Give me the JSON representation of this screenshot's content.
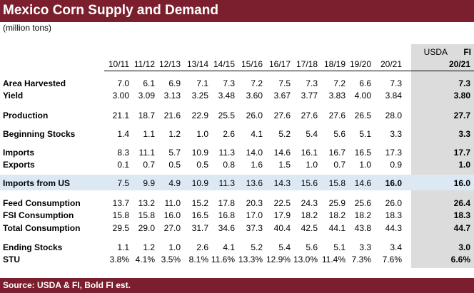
{
  "title": "Mexico Corn Supply and Demand",
  "subtitle": "(million tons)",
  "header_top": {
    "usda": "USDA",
    "fi": "FI"
  },
  "columns": [
    "10/11",
    "11/12",
    "12/13",
    "13/14",
    "14/15",
    "15/16",
    "16/17",
    "17/18",
    "18/19",
    "19/20",
    "20/21",
    "20/21"
  ],
  "rows": [
    {
      "label": "Area Harvested",
      "values": [
        "7.0",
        "6.1",
        "6.9",
        "7.1",
        "7.3",
        "7.2",
        "7.5",
        "7.3",
        "7.2",
        "6.6",
        "7.3",
        "7.3"
      ]
    },
    {
      "label": "Yield",
      "values": [
        "3.00",
        "3.09",
        "3.13",
        "3.25",
        "3.48",
        "3.60",
        "3.67",
        "3.77",
        "3.83",
        "4.00",
        "3.84",
        "3.80"
      ]
    },
    {
      "label": "Production",
      "values": [
        "21.1",
        "18.7",
        "21.6",
        "22.9",
        "25.5",
        "26.0",
        "27.6",
        "27.6",
        "27.6",
        "26.5",
        "28.0",
        "27.7"
      ]
    },
    {
      "label": "Beginning Stocks",
      "values": [
        "1.4",
        "1.1",
        "1.2",
        "1.0",
        "2.6",
        "4.1",
        "5.2",
        "5.4",
        "5.6",
        "5.1",
        "3.3",
        "3.3"
      ]
    },
    {
      "label": "Imports",
      "values": [
        "8.3",
        "11.1",
        "5.7",
        "10.9",
        "11.3",
        "14.0",
        "14.6",
        "16.1",
        "16.7",
        "16.5",
        "17.3",
        "17.7"
      ]
    },
    {
      "label": "Exports",
      "values": [
        "0.1",
        "0.7",
        "0.5",
        "0.5",
        "0.8",
        "1.6",
        "1.5",
        "1.0",
        "0.7",
        "1.0",
        "0.9",
        "1.0"
      ]
    },
    {
      "label": "Imports from US",
      "values": [
        "7.5",
        "9.9",
        "4.9",
        "10.9",
        "11.3",
        "13.6",
        "14.3",
        "15.6",
        "15.8",
        "14.6",
        "16.0",
        "16.0"
      ]
    },
    {
      "label": "Feed Consumption",
      "values": [
        "13.7",
        "13.2",
        "11.0",
        "15.2",
        "17.8",
        "20.3",
        "22.5",
        "24.3",
        "25.9",
        "25.6",
        "26.0",
        "26.4"
      ]
    },
    {
      "label": "FSI Consumption",
      "values": [
        "15.8",
        "15.8",
        "16.0",
        "16.5",
        "16.8",
        "17.0",
        "17.9",
        "18.2",
        "18.2",
        "18.2",
        "18.3",
        "18.3"
      ]
    },
    {
      "label": "Total Consumption",
      "values": [
        "29.5",
        "29.0",
        "27.0",
        "31.7",
        "34.6",
        "37.3",
        "40.4",
        "42.5",
        "44.1",
        "43.8",
        "44.3",
        "44.7"
      ]
    },
    {
      "label": "Ending Stocks",
      "values": [
        "1.1",
        "1.2",
        "1.0",
        "2.6",
        "4.1",
        "5.2",
        "5.4",
        "5.6",
        "5.1",
        "3.3",
        "3.4",
        "3.0"
      ]
    },
    {
      "label": "STU",
      "values": [
        "3.8%",
        "4.1%",
        "3.5%",
        "8.1%",
        "11.6%",
        "13.3%",
        "12.9%",
        "13.0%",
        "11.4%",
        "7.3%",
        "7.6%",
        "6.6%"
      ]
    }
  ],
  "source": "Source: USDA & FI,   Bold FI est.",
  "colors": {
    "brand": "#7b1f2e",
    "usda_shade": "#dcdcdc",
    "highlight": "#dce9f5"
  }
}
